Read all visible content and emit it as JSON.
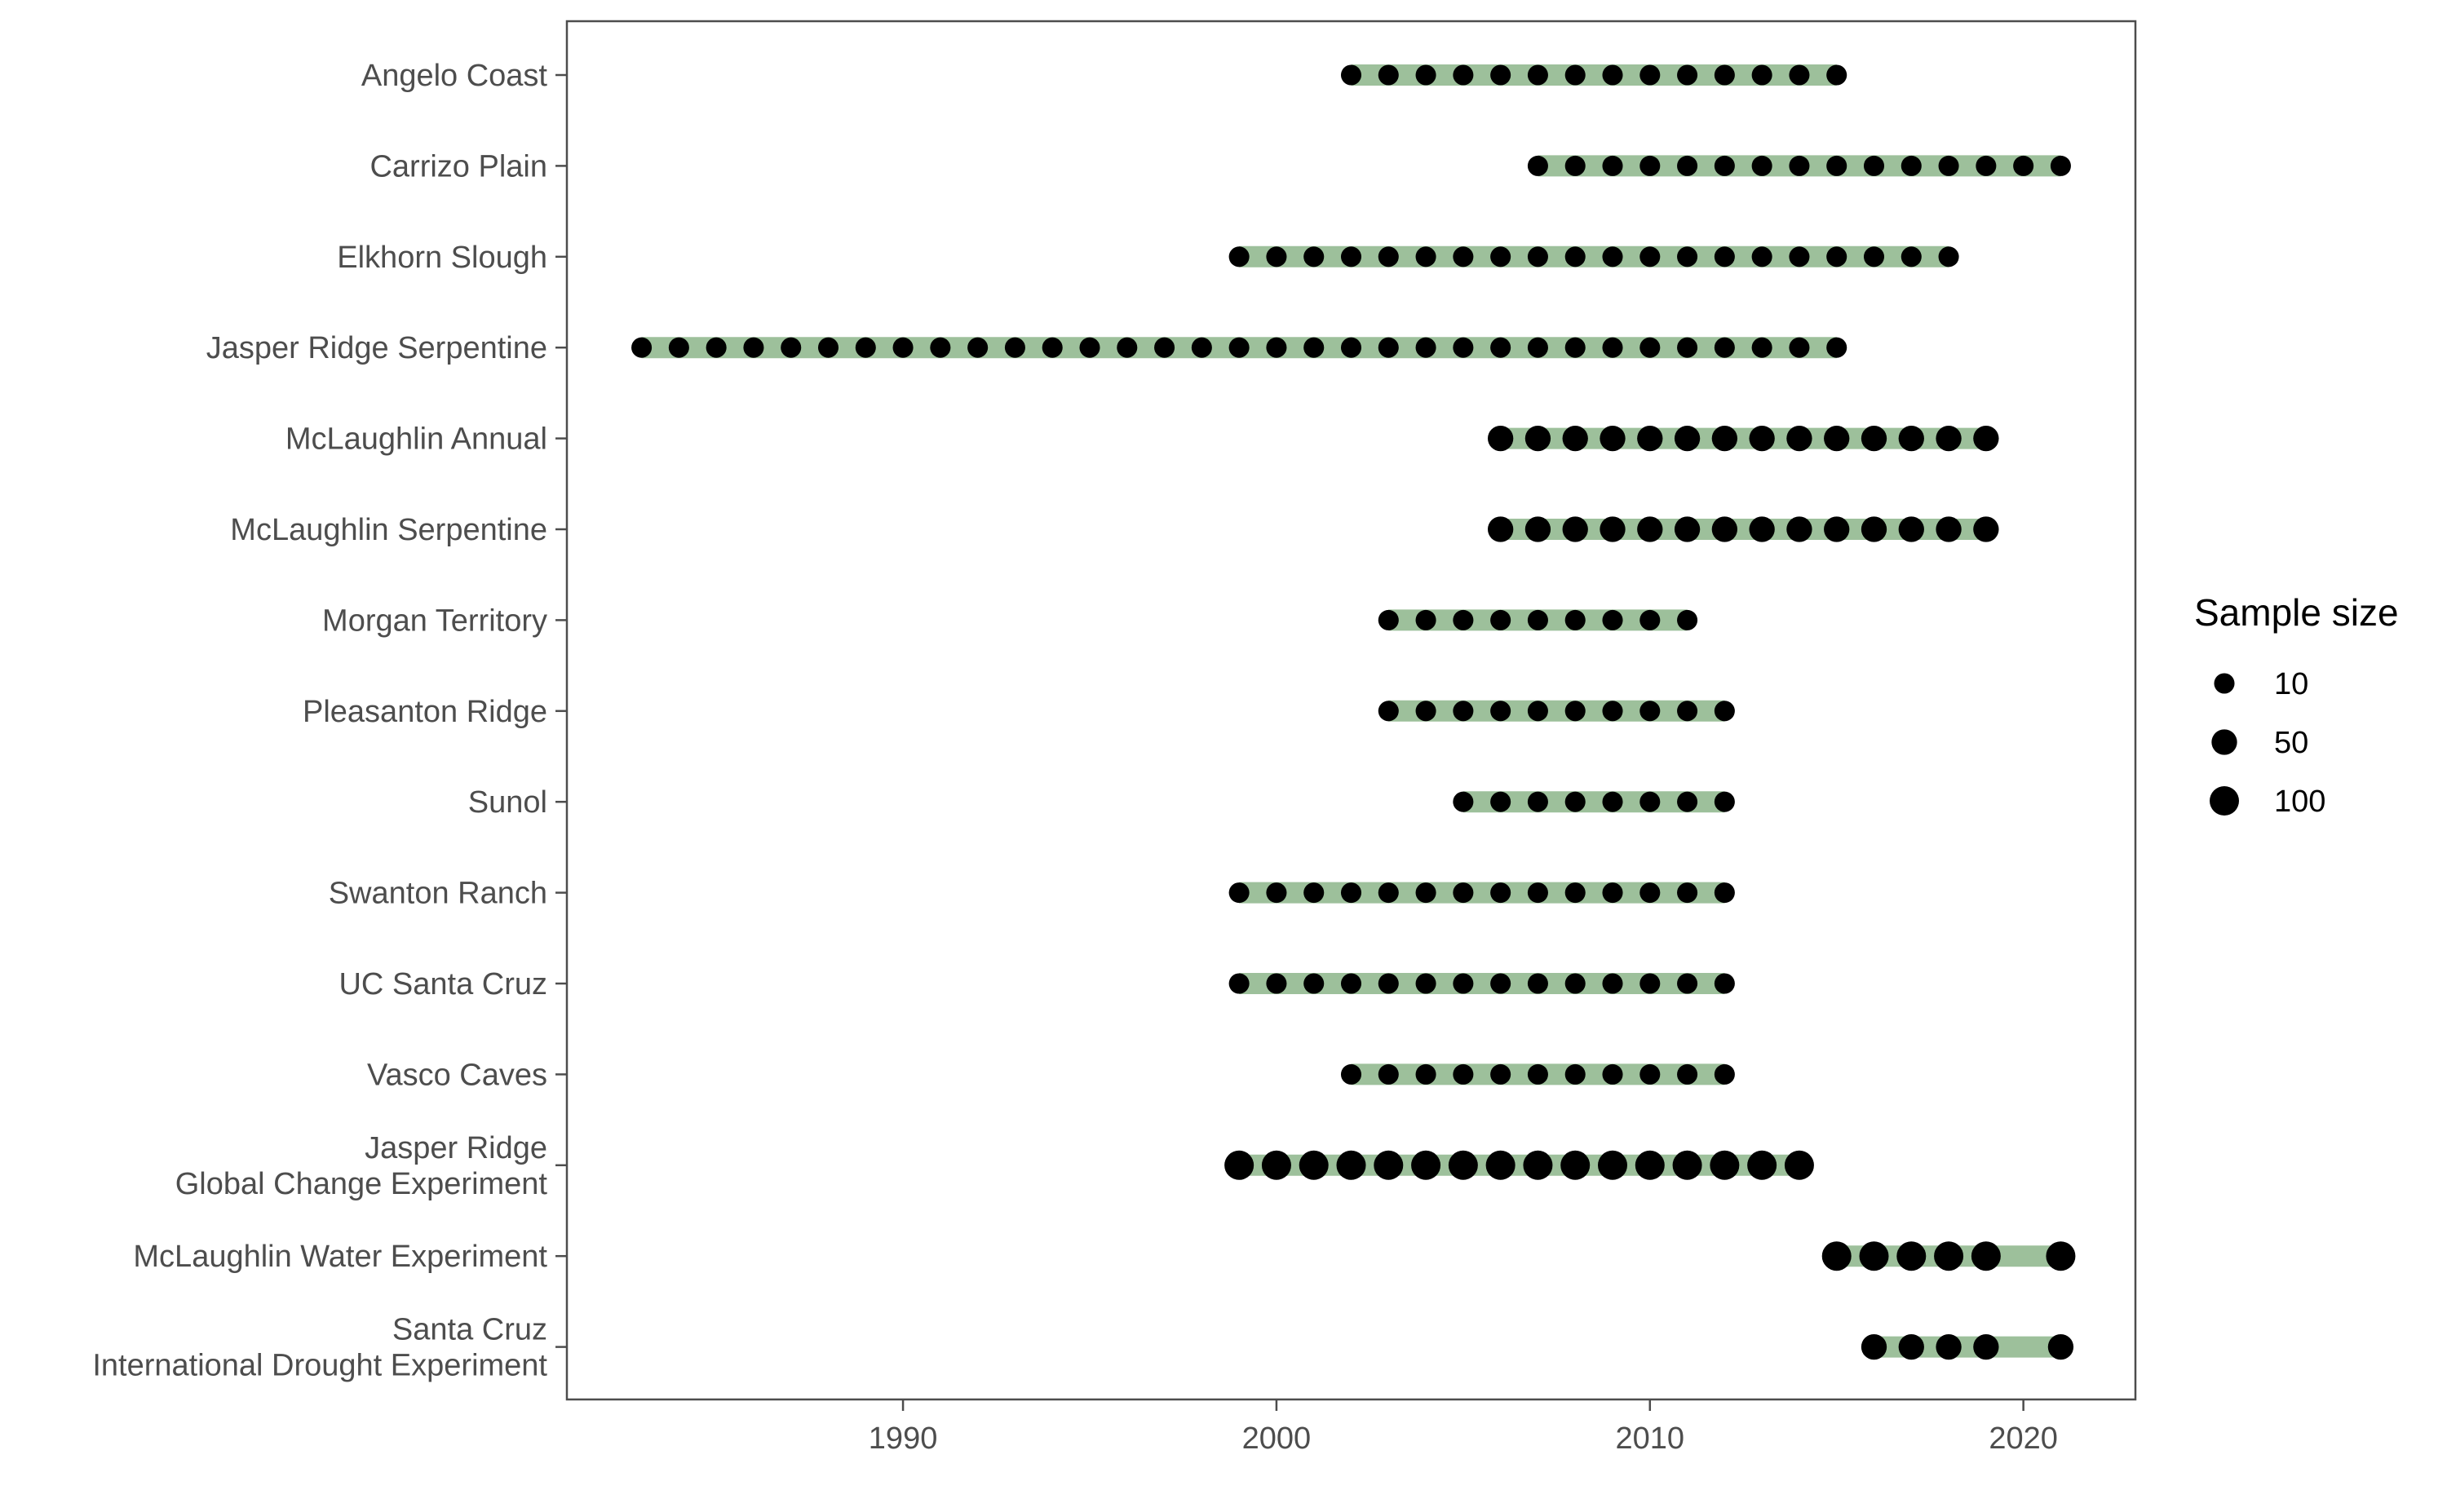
{
  "chart_data": {
    "type": "scatter",
    "title": "",
    "xlabel": "",
    "ylabel": "",
    "xlim": [
      1981,
      2023
    ],
    "x_ticks": [
      1990,
      2000,
      2010,
      2020
    ],
    "grid": false,
    "colors": {
      "span": "#9dc09b",
      "point": "#000000",
      "axis": "#4d4d4d"
    },
    "legend": {
      "title": "Sample size",
      "position": "right",
      "entries": [
        {
          "label": "10",
          "size": 10
        },
        {
          "label": "50",
          "size": 50
        },
        {
          "label": "100",
          "size": 100
        }
      ]
    },
    "series": [
      {
        "name": [
          "Angelo Coast"
        ],
        "start": 2002,
        "end": 2015,
        "sample_size": 10,
        "years": [
          2002,
          2003,
          2004,
          2005,
          2006,
          2007,
          2008,
          2009,
          2010,
          2011,
          2012,
          2013,
          2014,
          2015
        ]
      },
      {
        "name": [
          "Carrizo Plain"
        ],
        "start": 2007,
        "end": 2021,
        "sample_size": 10,
        "years": [
          2007,
          2008,
          2009,
          2010,
          2011,
          2012,
          2013,
          2014,
          2015,
          2016,
          2017,
          2018,
          2019,
          2020,
          2021
        ]
      },
      {
        "name": [
          "Elkhorn Slough"
        ],
        "start": 1999,
        "end": 2018,
        "sample_size": 10,
        "years": [
          1999,
          2000,
          2001,
          2002,
          2003,
          2004,
          2005,
          2006,
          2007,
          2008,
          2009,
          2010,
          2011,
          2012,
          2013,
          2014,
          2015,
          2016,
          2017,
          2018
        ]
      },
      {
        "name": [
          "Jasper Ridge Serpentine"
        ],
        "start": 1983,
        "end": 2015,
        "sample_size": 10,
        "years": [
          1983,
          1984,
          1985,
          1986,
          1987,
          1988,
          1989,
          1990,
          1991,
          1992,
          1993,
          1994,
          1995,
          1996,
          1997,
          1998,
          1999,
          2000,
          2001,
          2002,
          2003,
          2004,
          2005,
          2006,
          2007,
          2008,
          2009,
          2010,
          2011,
          2012,
          2013,
          2014,
          2015
        ]
      },
      {
        "name": [
          "McLaughlin Annual"
        ],
        "start": 2006,
        "end": 2019,
        "sample_size": 50,
        "years": [
          2006,
          2007,
          2008,
          2009,
          2010,
          2011,
          2012,
          2013,
          2014,
          2015,
          2016,
          2017,
          2018,
          2019
        ]
      },
      {
        "name": [
          "McLaughlin Serpentine"
        ],
        "start": 2006,
        "end": 2019,
        "sample_size": 50,
        "years": [
          2006,
          2007,
          2008,
          2009,
          2010,
          2011,
          2012,
          2013,
          2014,
          2015,
          2016,
          2017,
          2018,
          2019
        ]
      },
      {
        "name": [
          "Morgan Territory"
        ],
        "start": 2003,
        "end": 2011,
        "sample_size": 10,
        "years": [
          2003,
          2004,
          2005,
          2006,
          2007,
          2008,
          2009,
          2010,
          2011
        ]
      },
      {
        "name": [
          "Pleasanton Ridge"
        ],
        "start": 2003,
        "end": 2012,
        "sample_size": 10,
        "years": [
          2003,
          2004,
          2005,
          2006,
          2007,
          2008,
          2009,
          2010,
          2011,
          2012
        ]
      },
      {
        "name": [
          "Sunol"
        ],
        "start": 2005,
        "end": 2012,
        "sample_size": 10,
        "years": [
          2005,
          2006,
          2007,
          2008,
          2009,
          2010,
          2011,
          2012
        ]
      },
      {
        "name": [
          "Swanton Ranch"
        ],
        "start": 1999,
        "end": 2012,
        "sample_size": 10,
        "years": [
          1999,
          2000,
          2001,
          2002,
          2003,
          2004,
          2005,
          2006,
          2007,
          2008,
          2009,
          2010,
          2011,
          2012
        ]
      },
      {
        "name": [
          "UC Santa Cruz"
        ],
        "start": 1999,
        "end": 2012,
        "sample_size": 10,
        "years": [
          1999,
          2000,
          2001,
          2002,
          2003,
          2004,
          2005,
          2006,
          2007,
          2008,
          2009,
          2010,
          2011,
          2012
        ]
      },
      {
        "name": [
          "Vasco Caves"
        ],
        "start": 2002,
        "end": 2012,
        "sample_size": 10,
        "years": [
          2002,
          2003,
          2004,
          2005,
          2006,
          2007,
          2008,
          2009,
          2010,
          2011,
          2012
        ]
      },
      {
        "name": [
          "Jasper Ridge",
          "Global Change Experiment"
        ],
        "start": 1999,
        "end": 2014,
        "sample_size": 100,
        "years": [
          1999,
          2000,
          2001,
          2002,
          2003,
          2004,
          2005,
          2006,
          2007,
          2008,
          2009,
          2010,
          2011,
          2012,
          2013,
          2014
        ]
      },
      {
        "name": [
          "McLaughlin Water Experiment"
        ],
        "start": 2015,
        "end": 2021,
        "sample_size": 100,
        "years": [
          2015,
          2016,
          2017,
          2018,
          2019,
          2021
        ]
      },
      {
        "name": [
          "Santa Cruz",
          "International Drought Experiment"
        ],
        "start": 2016,
        "end": 2021,
        "sample_size": 50,
        "years": [
          2016,
          2017,
          2018,
          2019,
          2021
        ]
      }
    ]
  }
}
